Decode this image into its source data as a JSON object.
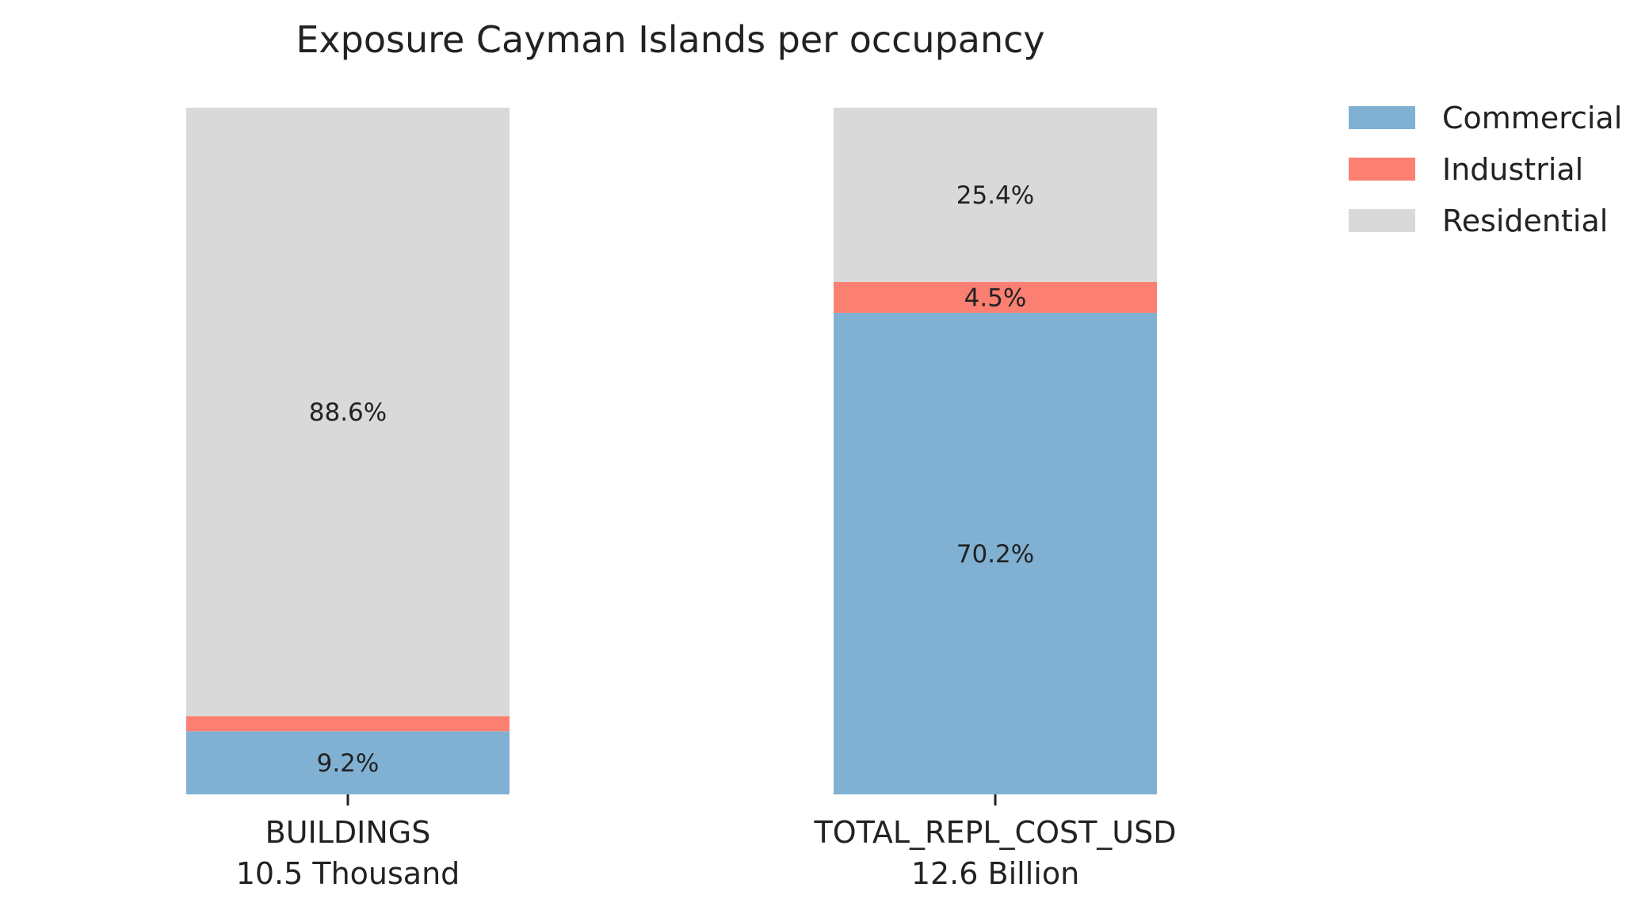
{
  "chart_data": {
    "type": "bar",
    "stacked": true,
    "normalized_percent": true,
    "title": "Exposure Cayman Islands per occupancy",
    "categories": [
      "BUILDINGS",
      "TOTAL_REPL_COST_USD"
    ],
    "category_totals": [
      "10.5 Thousand",
      "12.6 Billion"
    ],
    "series": [
      {
        "name": "Commercial",
        "color": "#80b1d3",
        "values": [
          9.2,
          70.2
        ],
        "labels": [
          "9.2%",
          "70.2%"
        ]
      },
      {
        "name": "Industrial",
        "color": "#fb8072",
        "values": [
          2.2,
          4.5
        ],
        "labels": [
          "",
          "4.5%"
        ]
      },
      {
        "name": "Residential",
        "color": "#d9d9d9",
        "values": [
          88.6,
          25.4
        ],
        "labels": [
          "88.6%",
          "25.4%"
        ]
      }
    ],
    "ylim": [
      0,
      100
    ],
    "grid": false,
    "legend": "top-right"
  }
}
